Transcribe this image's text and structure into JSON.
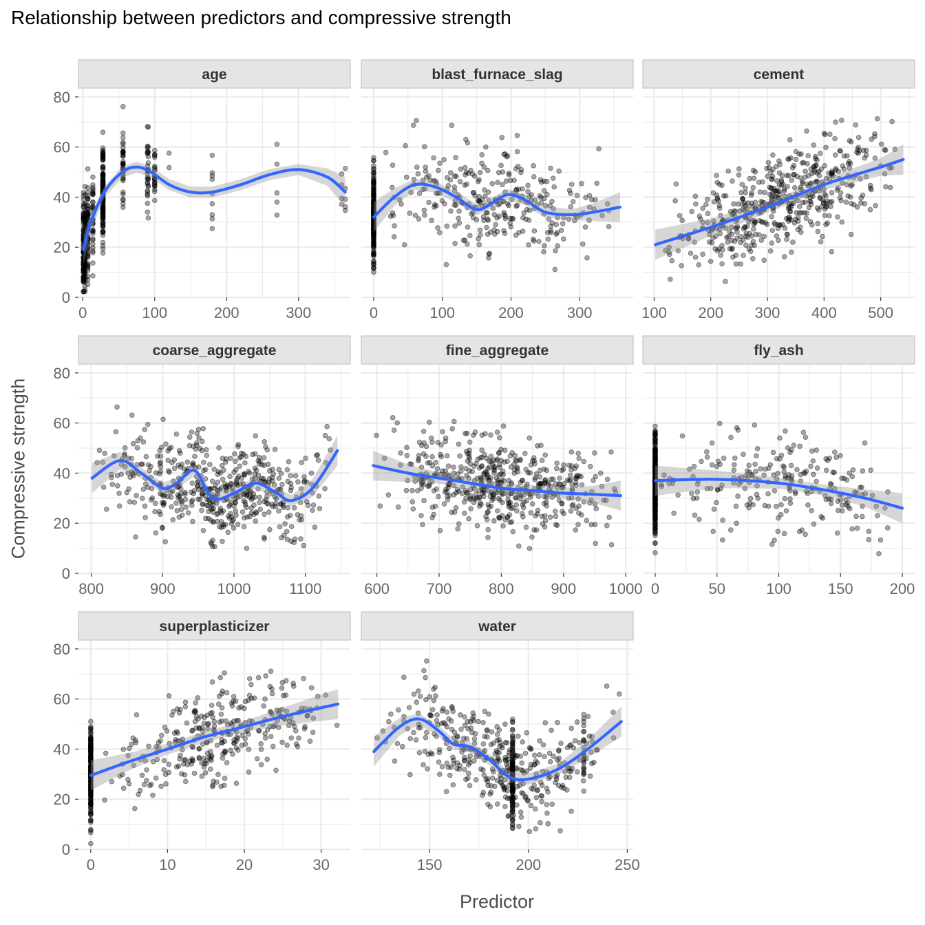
{
  "title": "Relationship between predictors and compressive strength",
  "xlabel": "Predictor",
  "ylabel": "Compressive strength",
  "colors": {
    "points": "#000000",
    "smooth": "#3366FF",
    "ribbon": "#999999",
    "strip": "#e5e5e5",
    "grid": "#ebebeb"
  },
  "chart_data": {
    "type": "scatter",
    "facets_layout": "3 columns, 3 rows, free x scales, shared y scale",
    "ylim": [
      0,
      82
    ],
    "y_ticks": [
      0,
      20,
      40,
      60,
      80
    ],
    "grid": true,
    "legend": "none",
    "panels": [
      {
        "name": "age",
        "xlim": [
          -6,
          372
        ],
        "x_ticks": [
          0,
          100,
          200,
          300
        ],
        "x_groups": [
          1,
          3,
          7,
          14,
          28,
          56,
          90,
          91,
          100,
          120,
          180,
          270,
          360,
          365
        ],
        "smooth": [
          [
            1,
            19
          ],
          [
            10,
            29
          ],
          [
            30,
            42
          ],
          [
            55,
            50
          ],
          [
            75,
            52
          ],
          [
            95,
            50
          ],
          [
            120,
            45
          ],
          [
            150,
            42
          ],
          [
            180,
            42
          ],
          [
            220,
            45
          ],
          [
            260,
            49
          ],
          [
            300,
            51
          ],
          [
            340,
            48
          ],
          [
            365,
            42
          ]
        ]
      },
      {
        "name": "blast_furnace_slag",
        "xlim": [
          -18,
          378
        ],
        "x_ticks": [
          0,
          100,
          200,
          300
        ],
        "smooth": [
          [
            0,
            32
          ],
          [
            30,
            40
          ],
          [
            60,
            45
          ],
          [
            90,
            44
          ],
          [
            120,
            40
          ],
          [
            150,
            35
          ],
          [
            175,
            38
          ],
          [
            195,
            41
          ],
          [
            220,
            39
          ],
          [
            250,
            34
          ],
          [
            290,
            33
          ],
          [
            320,
            34
          ],
          [
            359,
            36
          ]
        ]
      },
      {
        "name": "cement",
        "xlim": [
          80,
          560
        ],
        "x_ticks": [
          100,
          200,
          300,
          400,
          500
        ],
        "smooth": [
          [
            102,
            21
          ],
          [
            200,
            28
          ],
          [
            300,
            36
          ],
          [
            400,
            45
          ],
          [
            500,
            52
          ],
          [
            540,
            55
          ]
        ]
      },
      {
        "name": "coarse_aggregate",
        "xlim": [
          782,
          1163
        ],
        "x_ticks": [
          800,
          900,
          1000,
          1100
        ],
        "smooth": [
          [
            801,
            38
          ],
          [
            840,
            45
          ],
          [
            870,
            40
          ],
          [
            900,
            34
          ],
          [
            920,
            36
          ],
          [
            945,
            41
          ],
          [
            970,
            30
          ],
          [
            1000,
            32
          ],
          [
            1030,
            36
          ],
          [
            1060,
            32
          ],
          [
            1080,
            29
          ],
          [
            1110,
            34
          ],
          [
            1145,
            49
          ]
        ]
      },
      {
        "name": "fine_aggregate",
        "xlim": [
          575,
          1012
        ],
        "x_ticks": [
          600,
          700,
          800,
          900,
          1000
        ],
        "smooth": [
          [
            594,
            43
          ],
          [
            650,
            40
          ],
          [
            700,
            38
          ],
          [
            750,
            36
          ],
          [
            800,
            34
          ],
          [
            850,
            33
          ],
          [
            900,
            32
          ],
          [
            950,
            31.5
          ],
          [
            992,
            31
          ]
        ]
      },
      {
        "name": "fly_ash",
        "xlim": [
          -10,
          210
        ],
        "x_ticks": [
          0,
          50,
          100,
          150,
          200
        ],
        "smooth": [
          [
            0,
            37
          ],
          [
            50,
            37.5
          ],
          [
            100,
            36
          ],
          [
            140,
            33
          ],
          [
            170,
            30
          ],
          [
            200,
            26
          ]
        ]
      },
      {
        "name": "superplasticizer",
        "xlim": [
          -1.6,
          33.8
        ],
        "x_ticks": [
          0,
          10,
          20,
          30
        ],
        "smooth": [
          [
            0,
            29.5
          ],
          [
            5,
            35
          ],
          [
            10,
            40
          ],
          [
            15,
            45
          ],
          [
            20,
            49
          ],
          [
            25,
            53
          ],
          [
            32.2,
            58
          ]
        ]
      },
      {
        "name": "water",
        "xlim": [
          115.5,
          253
        ],
        "x_ticks": [
          150,
          200,
          250
        ],
        "smooth": [
          [
            121.8,
            39
          ],
          [
            135,
            49
          ],
          [
            145,
            52
          ],
          [
            155,
            47
          ],
          [
            162,
            42
          ],
          [
            170,
            41
          ],
          [
            180,
            36
          ],
          [
            190,
            29
          ],
          [
            200,
            28
          ],
          [
            215,
            32
          ],
          [
            230,
            40
          ],
          [
            247,
            51
          ]
        ]
      }
    ]
  }
}
